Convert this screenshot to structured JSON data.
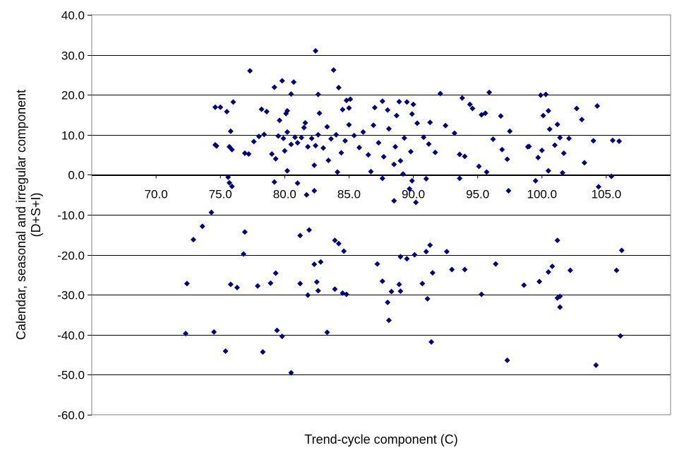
{
  "chart_data": {
    "type": "scatter",
    "title": "",
    "xlabel": "Trend-cycle component (C)",
    "ylabel_line1": "Calendar, seasonal and irregular component",
    "ylabel_line2": "(D+S+I)",
    "xlim": [
      65.0,
      110.0
    ],
    "ylim": [
      -60.0,
      40.0
    ],
    "x_ticks": [
      70.0,
      75.0,
      80.0,
      85.0,
      90.0,
      95.0,
      100.0,
      105.0
    ],
    "x_tick_labels": [
      "70.0",
      "75.0",
      "80.0",
      "85.0",
      "90.0",
      "95.0",
      "100.0",
      "105.0"
    ],
    "y_ticks": [
      40.0,
      30.0,
      20.0,
      10.0,
      0.0,
      -10.0,
      -20.0,
      -30.0,
      -40.0,
      -50.0,
      -60.0
    ],
    "y_tick_labels": [
      "40.0",
      "30.0",
      "20.0",
      "10.0",
      "0.0",
      "-10.0",
      "-20.0",
      "-30.0",
      "-40.0",
      "-50.0",
      "-60.0"
    ],
    "grid": "horizontal",
    "marker_color": "#000080",
    "series": [
      {
        "points": [
          [
            82.4,
            31.0
          ],
          [
            77.3,
            26.0
          ],
          [
            83.8,
            26.2
          ],
          [
            84.2,
            21.8
          ],
          [
            79.8,
            23.5
          ],
          [
            80.7,
            23.2
          ],
          [
            79.2,
            21.9
          ],
          [
            92.1,
            20.3
          ],
          [
            95.9,
            20.6
          ],
          [
            99.9,
            19.9
          ],
          [
            100.3,
            20.1
          ],
          [
            80.5,
            20.2
          ],
          [
            82.6,
            20.1
          ],
          [
            84.8,
            18.6
          ],
          [
            85.1,
            18.9
          ],
          [
            87.6,
            18.4
          ],
          [
            88.9,
            18.3
          ],
          [
            89.5,
            18.2
          ],
          [
            90.0,
            17.6
          ],
          [
            93.8,
            19.2
          ],
          [
            94.4,
            17.6
          ],
          [
            104.3,
            17.2
          ],
          [
            74.6,
            16.9
          ],
          [
            75.0,
            16.9
          ],
          [
            75.5,
            15.8
          ],
          [
            76.0,
            18.2
          ],
          [
            78.2,
            16.4
          ],
          [
            78.6,
            15.8
          ],
          [
            79.6,
            13.6
          ],
          [
            80.1,
            15.3
          ],
          [
            80.2,
            16.0
          ],
          [
            81.6,
            13.0
          ],
          [
            82.7,
            15.4
          ],
          [
            84.5,
            16.3
          ],
          [
            85.0,
            16.7
          ],
          [
            87.0,
            16.8
          ],
          [
            88.0,
            16.2
          ],
          [
            88.7,
            14.8
          ],
          [
            89.9,
            15.2
          ],
          [
            91.3,
            13.1
          ],
          [
            94.6,
            16.6
          ],
          [
            95.3,
            15.0
          ],
          [
            95.6,
            15.4
          ],
          [
            96.8,
            14.7
          ],
          [
            98.9,
            7.0
          ],
          [
            100.1,
            14.8
          ],
          [
            100.5,
            16.0
          ],
          [
            101.2,
            12.6
          ],
          [
            102.7,
            16.6
          ],
          [
            103.1,
            13.8
          ],
          [
            104.0,
            8.5
          ],
          [
            105.5,
            8.6
          ],
          [
            106.0,
            8.4
          ],
          [
            75.8,
            10.9
          ],
          [
            75.7,
            7.0
          ],
          [
            75.9,
            6.3
          ],
          [
            74.7,
            7.2
          ],
          [
            74.6,
            7.5
          ],
          [
            76.9,
            5.4
          ],
          [
            77.2,
            5.2
          ],
          [
            77.6,
            8.3
          ],
          [
            78.0,
            9.6
          ],
          [
            78.4,
            10.1
          ],
          [
            79.0,
            5.2
          ],
          [
            79.3,
            4.0
          ],
          [
            79.5,
            9.7
          ],
          [
            79.9,
            9.1
          ],
          [
            80.0,
            6.0
          ],
          [
            80.2,
            10.7
          ],
          [
            80.5,
            7.6
          ],
          [
            80.8,
            9.4
          ],
          [
            81.0,
            8.0
          ],
          [
            81.3,
            9.3
          ],
          [
            81.5,
            11.8
          ],
          [
            81.8,
            7.0
          ],
          [
            82.1,
            9.1
          ],
          [
            82.4,
            7.3
          ],
          [
            82.6,
            10.0
          ],
          [
            83.0,
            6.7
          ],
          [
            83.3,
            12.0
          ],
          [
            83.6,
            9.0
          ],
          [
            84.0,
            10.0
          ],
          [
            84.4,
            5.5
          ],
          [
            84.7,
            8.5
          ],
          [
            85.0,
            12.5
          ],
          [
            85.4,
            9.8
          ],
          [
            85.8,
            6.8
          ],
          [
            86.1,
            10.7
          ],
          [
            86.5,
            5.0
          ],
          [
            86.9,
            12.4
          ],
          [
            87.3,
            8.0
          ],
          [
            87.7,
            4.5
          ],
          [
            88.1,
            11.5
          ],
          [
            88.6,
            7.0
          ],
          [
            89.0,
            3.5
          ],
          [
            89.3,
            9.2
          ],
          [
            89.8,
            5.8
          ],
          [
            90.3,
            12.9
          ],
          [
            90.8,
            9.4
          ],
          [
            91.2,
            7.7
          ],
          [
            91.7,
            5.6
          ],
          [
            92.5,
            12.3
          ],
          [
            93.2,
            10.4
          ],
          [
            93.6,
            5.1
          ],
          [
            94.0,
            4.6
          ],
          [
            95.1,
            2.1
          ],
          [
            95.7,
            0.7
          ],
          [
            96.2,
            8.9
          ],
          [
            96.9,
            6.3
          ],
          [
            97.3,
            3.9
          ],
          [
            97.5,
            10.9
          ],
          [
            99.0,
            7.1
          ],
          [
            99.7,
            4.3
          ],
          [
            100.0,
            6.1
          ],
          [
            100.6,
            11.4
          ],
          [
            101.0,
            7.4
          ],
          [
            101.4,
            9.3
          ],
          [
            101.7,
            5.4
          ],
          [
            102.1,
            9.1
          ],
          [
            103.3,
            3.0
          ],
          [
            100.5,
            1.0
          ],
          [
            101.6,
            0.5
          ],
          [
            80.2,
            1.0
          ],
          [
            81.0,
            -2.1
          ],
          [
            82.3,
            2.4
          ],
          [
            83.4,
            3.6
          ],
          [
            84.1,
            0.7
          ],
          [
            86.7,
            0.8
          ],
          [
            87.6,
            -0.9
          ],
          [
            88.5,
            2.6
          ],
          [
            89.2,
            0.2
          ],
          [
            89.9,
            -1.5
          ],
          [
            91.0,
            -1.0
          ],
          [
            93.6,
            -0.9
          ],
          [
            99.5,
            -1.5
          ],
          [
            105.4,
            -0.4
          ],
          [
            75.6,
            -0.6
          ],
          [
            75.7,
            -2.0
          ],
          [
            75.9,
            -2.9
          ],
          [
            79.2,
            -1.8
          ],
          [
            81.7,
            -5.0
          ],
          [
            82.3,
            -4.0
          ],
          [
            88.5,
            -6.5
          ],
          [
            89.7,
            -3.5
          ],
          [
            90.2,
            -6.9
          ],
          [
            97.4,
            -4.0
          ],
          [
            104.4,
            -3.0
          ],
          [
            74.3,
            -9.4
          ],
          [
            73.6,
            -12.9
          ],
          [
            72.9,
            -16.2
          ],
          [
            76.9,
            -14.3
          ],
          [
            76.8,
            -19.8
          ],
          [
            81.2,
            -15.2
          ],
          [
            81.9,
            -13.8
          ],
          [
            83.9,
            -16.4
          ],
          [
            84.2,
            -17.2
          ],
          [
            84.6,
            -19.1
          ],
          [
            89.0,
            -20.5
          ],
          [
            89.5,
            -21.0
          ],
          [
            90.1,
            -20.0
          ],
          [
            91.3,
            -17.6
          ],
          [
            91.0,
            -19.2
          ],
          [
            92.6,
            -19.2
          ],
          [
            96.4,
            -22.3
          ],
          [
            101.2,
            -16.4
          ],
          [
            100.5,
            -24.3
          ],
          [
            100.8,
            -22.9
          ],
          [
            102.2,
            -23.9
          ],
          [
            106.2,
            -18.9
          ],
          [
            105.8,
            -23.9
          ],
          [
            72.4,
            -27.2
          ],
          [
            75.8,
            -27.4
          ],
          [
            76.3,
            -28.2
          ],
          [
            77.9,
            -27.8
          ],
          [
            78.9,
            -27.1
          ],
          [
            79.3,
            -24.6
          ],
          [
            81.2,
            -27.2
          ],
          [
            81.8,
            -30.1
          ],
          [
            82.5,
            -26.8
          ],
          [
            82.8,
            -21.8
          ],
          [
            82.3,
            -22.4
          ],
          [
            82.6,
            -29.0
          ],
          [
            83.9,
            -28.6
          ],
          [
            84.5,
            -29.6
          ],
          [
            84.8,
            -29.9
          ],
          [
            87.6,
            -26.6
          ],
          [
            87.2,
            -22.3
          ],
          [
            88.3,
            -29.2
          ],
          [
            88.9,
            -27.4
          ],
          [
            89.0,
            -29.1
          ],
          [
            90.7,
            -27.2
          ],
          [
            91.1,
            -31.0
          ],
          [
            91.5,
            -24.5
          ],
          [
            93.0,
            -23.7
          ],
          [
            94.0,
            -23.7
          ],
          [
            95.3,
            -29.9
          ],
          [
            98.6,
            -27.6
          ],
          [
            99.8,
            -26.7
          ],
          [
            101.2,
            -30.8
          ],
          [
            101.4,
            -30.4
          ],
          [
            101.4,
            -33.1
          ],
          [
            72.3,
            -39.7
          ],
          [
            74.5,
            -39.3
          ],
          [
            75.4,
            -44.1
          ],
          [
            78.3,
            -44.3
          ],
          [
            79.4,
            -38.9
          ],
          [
            79.8,
            -40.4
          ],
          [
            80.5,
            -49.5
          ],
          [
            83.3,
            -39.4
          ],
          [
            88.1,
            -36.4
          ],
          [
            88.0,
            -31.9
          ],
          [
            91.4,
            -41.8
          ],
          [
            97.3,
            -46.4
          ],
          [
            104.2,
            -47.6
          ],
          [
            106.1,
            -40.3
          ]
        ]
      }
    ]
  }
}
